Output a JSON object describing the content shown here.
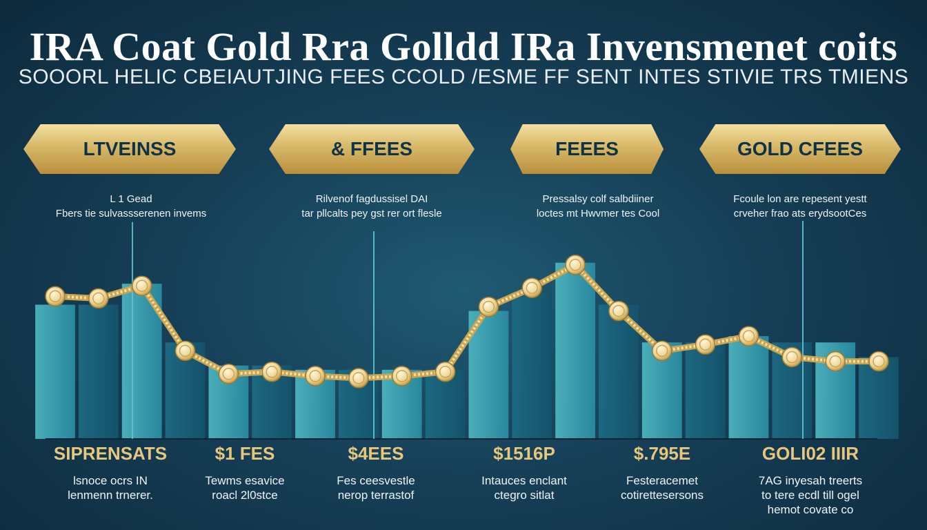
{
  "header": {
    "title": "IRA Coat Gold Rra Golldd IRa Invensmenet coits",
    "subtitle": "SOOORL HELIC CBEIAUTJING FEES CCOLD /ESME FF SENT INTES STIVIE TRS TMIENS"
  },
  "banners": [
    {
      "label": "LTVEINSS"
    },
    {
      "label": "& FFEES"
    },
    {
      "label": "FEEES"
    },
    {
      "label": "GOLD CFEES"
    }
  ],
  "descriptions": [
    {
      "line1": "L 1 Gead",
      "line2": "Fbers tie sulvassserenen invems"
    },
    {
      "line1": "Rilvenof fagdussisel DAI",
      "line2": "tar pllcalts pey gst rer ort flesle"
    },
    {
      "line1": "Pressalsy colf salbdiiner",
      "line2": "loctes mt Hwvmer tes Cool"
    },
    {
      "line1": "Fcoule lon are repesent yestt",
      "line2": "crveher frao ats erydsootCes"
    }
  ],
  "costs": [
    {
      "label": "SIPRENSATS",
      "line1": "lsnoce ocrs IN",
      "line2": "lenmenn trnerer."
    },
    {
      "label": "$1 FES",
      "line1": "Tewms esavice",
      "line2": "roacl 2l0stce"
    },
    {
      "label": "$4EES",
      "line1": "Fes ceesvestle",
      "line2": "nerop terrastof"
    },
    {
      "label": "$1516P",
      "line1": "Intauces enclant",
      "line2": "ctegro sitlat"
    },
    {
      "label": "$.795E",
      "line1": "Festeracemet",
      "line2": "cotirettesersons"
    },
    {
      "label": "GOLI02 IIIR",
      "line1": "7AG inyesah treerts",
      "line2": "to tere ecdl till ogel",
      "line3": "hemot covate co"
    }
  ],
  "colors": {
    "background": "#163f57",
    "gold": "#e6c77c",
    "bar_light": "#3aa5b3",
    "bar_dark": "#1f6f86"
  },
  "chart_data": {
    "type": "line",
    "title": "",
    "xlabel": "",
    "ylabel": "",
    "ylim": [
      0,
      100
    ],
    "x": [
      1,
      2,
      3,
      4,
      5,
      6,
      7,
      8,
      9,
      10,
      11,
      12,
      13,
      14,
      15,
      16,
      17,
      18,
      19,
      20
    ],
    "series": [
      {
        "values": [
          66,
          65,
          71,
          40,
          29,
          30,
          28,
          27,
          28,
          30,
          61,
          70,
          81,
          59,
          40,
          43,
          47,
          37,
          35,
          35
        ]
      }
    ],
    "bars": [
      62,
      62,
      72,
      44,
      33,
      33,
      31,
      31,
      31,
      31,
      59,
      68,
      82,
      62,
      44,
      44,
      47,
      44,
      44,
      37
    ]
  }
}
